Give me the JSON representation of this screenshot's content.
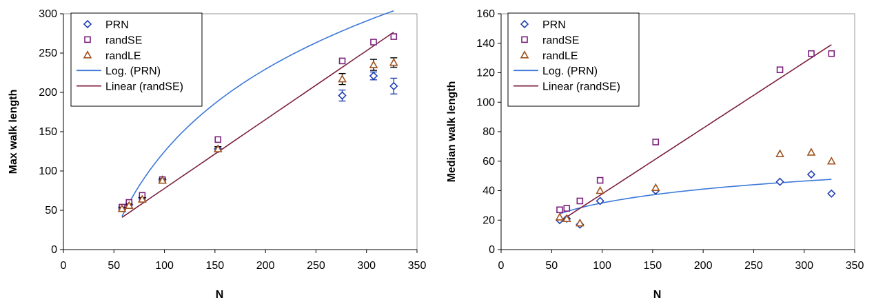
{
  "charts": [
    {
      "id": "left",
      "chart_data": {
        "type": "scatter",
        "xlabel": "N",
        "ylabel": "Max walk length",
        "xlim": [
          0,
          350
        ],
        "ylim": [
          0,
          300
        ],
        "xticks": [
          0,
          50,
          100,
          150,
          200,
          250,
          300,
          350
        ],
        "yticks": [
          0,
          50,
          100,
          150,
          200,
          250,
          300
        ],
        "grid": false,
        "legend_position": "top-left",
        "series": [
          {
            "name": "PRN",
            "marker": "diamond",
            "color": "#1f3fb0",
            "points": [
              [
                58,
                53
              ],
              [
                65,
                57
              ],
              [
                78,
                66
              ],
              [
                98,
                89
              ],
              [
                153,
                128
              ],
              [
                276,
                196
              ],
              [
                307,
                221
              ],
              [
                327,
                208
              ]
            ],
            "errors": [
              2,
              3,
              2,
              2,
              3,
              7,
              5,
              10
            ]
          },
          {
            "name": "randSE",
            "marker": "square",
            "color": "#7b1f7b",
            "points": [
              [
                58,
                54
              ],
              [
                65,
                60
              ],
              [
                78,
                69
              ],
              [
                98,
                89
              ],
              [
                153,
                140
              ],
              [
                276,
                240
              ],
              [
                307,
                264
              ],
              [
                327,
                271
              ]
            ]
          },
          {
            "name": "randLE",
            "marker": "triangle",
            "color": "#a0521e",
            "points": [
              [
                58,
                52
              ],
              [
                65,
                56
              ],
              [
                78,
                64
              ],
              [
                98,
                88
              ],
              [
                153,
                128
              ],
              [
                276,
                217
              ],
              [
                307,
                235
              ],
              [
                327,
                238
              ]
            ],
            "errors": [
              2,
              2,
              2,
              2,
              3,
              7,
              7,
              6
            ]
          }
        ],
        "trendlines": [
          {
            "name": "Log. (PRN)",
            "kind": "log",
            "color": "#3b78d8",
            "x_range": [
              58,
              327
            ],
            "a": 151.2,
            "b": -571.6
          },
          {
            "name": "Linear (randSE)",
            "kind": "linear",
            "color": "#7b1f3b",
            "x_range": [
              58,
              327
            ],
            "slope": 0.876,
            "intercept": -9.8
          }
        ]
      }
    },
    {
      "id": "right",
      "chart_data": {
        "type": "scatter",
        "xlabel": "N",
        "ylabel": "Median walk length",
        "xlim": [
          0,
          350
        ],
        "ylim": [
          0,
          160
        ],
        "xticks": [
          0,
          50,
          100,
          150,
          200,
          250,
          300,
          350
        ],
        "yticks": [
          0,
          20,
          40,
          60,
          80,
          100,
          120,
          140,
          160
        ],
        "grid": false,
        "legend_position": "top-left",
        "series": [
          {
            "name": "PRN",
            "marker": "diamond",
            "color": "#1f3fb0",
            "points": [
              [
                58,
                20
              ],
              [
                65,
                21
              ],
              [
                78,
                17
              ],
              [
                98,
                33
              ],
              [
                153,
                40
              ],
              [
                276,
                46
              ],
              [
                307,
                51
              ],
              [
                327,
                38
              ]
            ]
          },
          {
            "name": "randSE",
            "marker": "square",
            "color": "#7b1f7b",
            "points": [
              [
                58,
                27
              ],
              [
                65,
                28
              ],
              [
                78,
                33
              ],
              [
                98,
                47
              ],
              [
                153,
                73
              ],
              [
                276,
                122
              ],
              [
                307,
                133
              ],
              [
                327,
                133
              ]
            ]
          },
          {
            "name": "randLE",
            "marker": "triangle",
            "color": "#a0521e",
            "points": [
              [
                58,
                22
              ],
              [
                65,
                21
              ],
              [
                78,
                18
              ],
              [
                98,
                40
              ],
              [
                153,
                42
              ],
              [
                276,
                65
              ],
              [
                307,
                66
              ],
              [
                327,
                60
              ]
            ]
          }
        ],
        "trendlines": [
          {
            "name": "Log. (PRN)",
            "kind": "log",
            "color": "#3b78d8",
            "x_range": [
              58,
              327
            ],
            "a": 13.5,
            "b": -30.5
          },
          {
            "name": "Linear (randSE)",
            "kind": "linear",
            "color": "#7b1f3b",
            "x_range": [
              58,
              327
            ],
            "slope": 0.446,
            "intercept": -6.8
          }
        ]
      }
    }
  ]
}
